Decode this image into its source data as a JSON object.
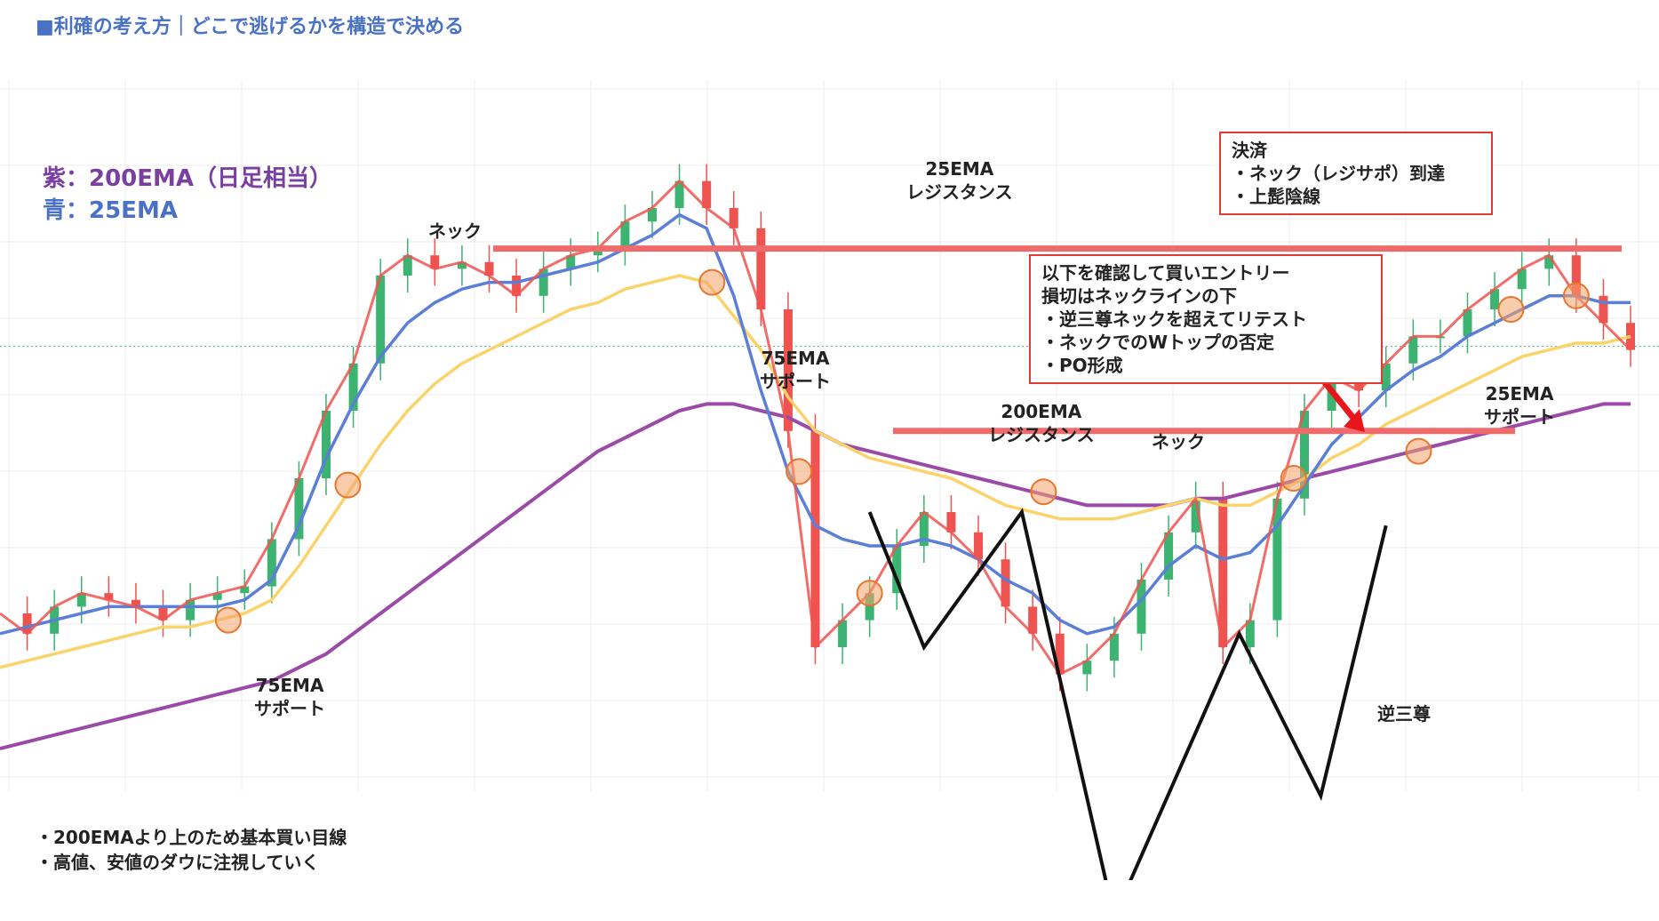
{
  "title": "■利確の考え方｜どこで逃げるかを構造で決める",
  "legend": {
    "purple": "紫：200EMA（日足相当）",
    "blue": "青：25EMA"
  },
  "colors": {
    "price": "#ef5350",
    "ema25": "#5b7fd6",
    "ema75": "#fbd36b",
    "ema200": "#9b4aa8",
    "neck": "#ef6a6a",
    "marker": "#f4a36b",
    "pattern": "#111111",
    "arrow": "#e8161b"
  },
  "labels": {
    "neck_upper": "ネック",
    "neck_lower": "ネック",
    "ema75_support_1_a": "75EMA",
    "ema75_support_1_b": "サポート",
    "ema75_support_2_a": "75EMA",
    "ema75_support_2_b": "サポート",
    "ema25_res_a": "25EMA",
    "ema25_res_b": "レジスタンス",
    "ema200_res_a": "200EMA",
    "ema200_res_b": "レジスタンス",
    "ema25_sup_a": "25EMA",
    "ema25_sup_b": "サポート",
    "inverse_hs": "逆三尊"
  },
  "entry_box": {
    "lines": [
      "以下を確認して買いエントリー",
      "損切はネックラインの下",
      "・逆三尊ネックを超えてリテスト",
      "・ネックでのWトップの否定",
      "・PO形成"
    ]
  },
  "exit_box": {
    "lines": [
      "決済",
      "・ネック（レジサポ）到達",
      "・上髭陰線"
    ]
  },
  "notes": [
    "・200EMAより上のため基本買い目線",
    "・高値、安値のダウに注視していく"
  ],
  "chart_data": {
    "type": "line",
    "title": "",
    "xlabel": "",
    "ylabel": "",
    "ylim": [
      0,
      100
    ],
    "x": [
      0,
      5,
      10,
      15,
      20,
      25,
      30,
      35,
      40,
      45,
      50,
      55,
      60,
      65,
      70,
      75,
      80,
      85,
      90,
      95,
      100,
      105,
      110,
      115,
      120,
      125,
      130,
      135,
      140,
      145,
      150,
      155,
      160,
      165,
      170,
      175,
      180,
      185,
      190,
      195,
      200,
      205,
      210,
      215,
      220,
      225,
      230,
      235,
      240,
      245,
      250,
      255,
      260,
      265,
      270,
      275,
      280,
      285,
      290,
      295,
      300
    ],
    "series": [
      {
        "key": "price",
        "values": [
          25,
          22,
          26,
          28,
          27,
          26,
          24,
          27,
          28,
          29,
          36,
          45,
          55,
          62,
          75,
          78,
          76,
          77,
          75,
          72,
          76,
          78,
          79,
          83,
          85,
          89,
          85,
          82,
          70,
          52,
          20,
          24,
          28,
          35,
          40,
          37,
          33,
          26,
          22,
          16,
          18,
          22,
          30,
          37,
          42,
          20,
          24,
          42,
          55,
          60,
          58,
          62,
          66,
          66,
          70,
          73,
          76,
          78,
          72,
          68,
          64
        ]
      },
      {
        "key": "ema25",
        "values": [
          22,
          23,
          24,
          25,
          26,
          26,
          26,
          26,
          26,
          27,
          30,
          38,
          48,
          56,
          63,
          68,
          71,
          73,
          74,
          74,
          75,
          76,
          77,
          79,
          81,
          84,
          82,
          72,
          58,
          46,
          38,
          36,
          35,
          35,
          36,
          35,
          33,
          30,
          28,
          24,
          22,
          23,
          27,
          32,
          35,
          33,
          34,
          38,
          44,
          50,
          54,
          58,
          61,
          63,
          66,
          68,
          70,
          72,
          72,
          71,
          71
        ]
      },
      {
        "key": "ema75",
        "values": [
          17,
          18,
          19,
          20,
          21,
          22,
          23,
          23,
          24,
          25,
          27,
          32,
          38,
          44,
          50,
          55,
          59,
          62,
          64,
          66,
          68,
          70,
          71,
          73,
          74,
          75,
          74,
          69,
          64,
          57,
          52,
          50,
          48,
          47,
          46,
          45,
          43,
          41,
          40,
          39,
          39,
          39,
          40,
          41,
          42,
          41,
          41,
          43,
          45,
          48,
          50,
          53,
          55,
          57,
          59,
          61,
          63,
          64,
          65,
          65,
          66
        ]
      },
      {
        "key": "ema200",
        "values": [
          5,
          6,
          7,
          8,
          9,
          10,
          11,
          12,
          13,
          14,
          15,
          17,
          19,
          22,
          25,
          28,
          31,
          34,
          37,
          40,
          43,
          46,
          49,
          51,
          53,
          55,
          56,
          56,
          55,
          54,
          52,
          50,
          49,
          48,
          47,
          46,
          45,
          44,
          43,
          42,
          41,
          41,
          41,
          41,
          42,
          42,
          43,
          44,
          45,
          46,
          47,
          48,
          49,
          50,
          51,
          52,
          53,
          54,
          55,
          56,
          56
        ]
      }
    ],
    "neck_levels": [
      79,
      52
    ],
    "grid": true,
    "legend": "top-left"
  }
}
